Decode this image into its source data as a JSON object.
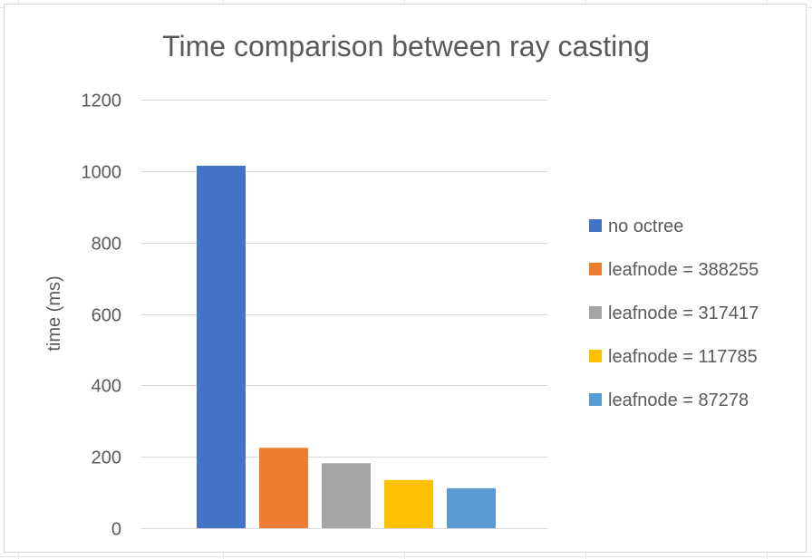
{
  "chart_data": {
    "type": "bar",
    "title": "Time comparison between ray casting",
    "xlabel": "",
    "ylabel": "time (ms)",
    "ylim": [
      0,
      1200
    ],
    "yticks": [
      0,
      200,
      400,
      600,
      800,
      1000,
      1200
    ],
    "grid": true,
    "legend_position": "right",
    "series": [
      {
        "name": "no octree",
        "values": [
          1015
        ],
        "color": "#4472c4"
      },
      {
        "name": "leafnode = 388255",
        "values": [
          225
        ],
        "color": "#ed7d31"
      },
      {
        "name": "leafnode = 317417",
        "values": [
          182
        ],
        "color": "#a5a5a5"
      },
      {
        "name": "leafnode = 117785",
        "values": [
          135
        ],
        "color": "#ffc000"
      },
      {
        "name": "leafnode = 87278",
        "values": [
          112
        ],
        "color": "#5b9bd5"
      }
    ],
    "colors": {
      "axis_text": "#595959",
      "title_text": "#595959",
      "gridline": "#d9d9d9"
    }
  }
}
